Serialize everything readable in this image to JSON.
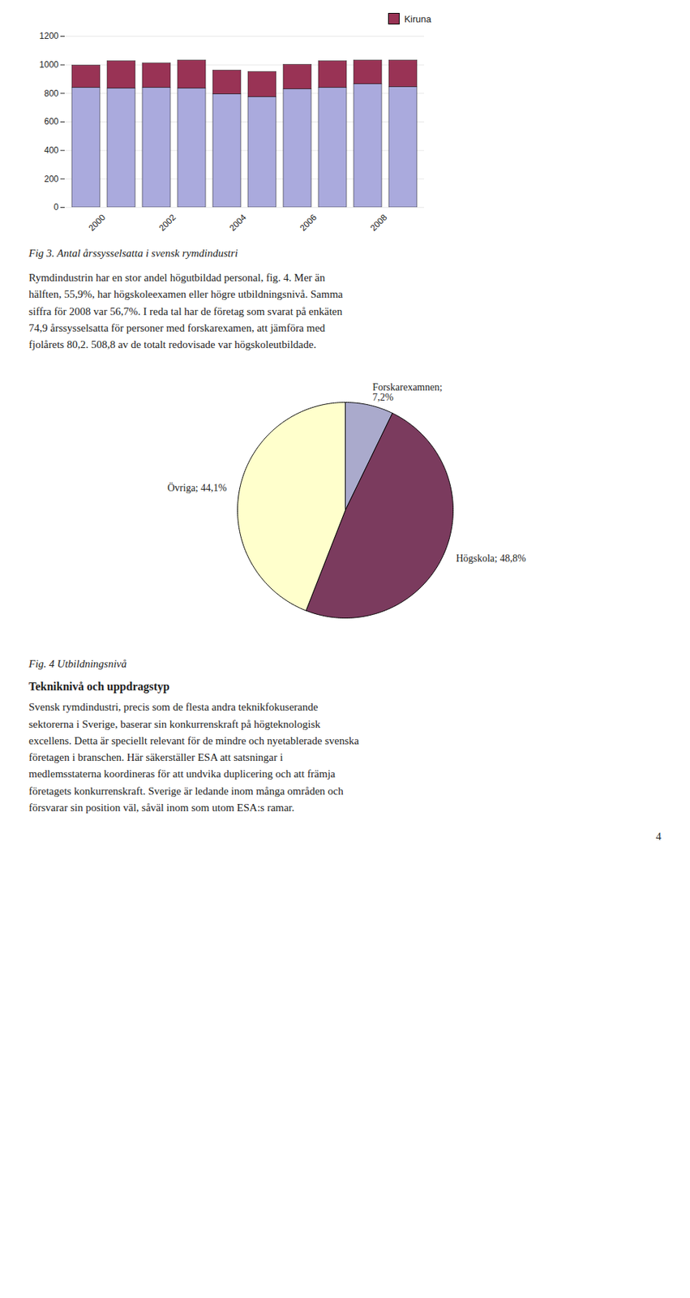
{
  "chart_data": [
    {
      "type": "bar",
      "title": "Fig 3. Antal årssysselsatta i svensk rymdindustri",
      "categories": [
        "2000",
        null,
        "2002",
        null,
        "2004",
        null,
        "2006",
        null,
        "2008",
        null
      ],
      "series": [
        {
          "color": "#aaaadd",
          "values": [
            840,
            835,
            840,
            835,
            795,
            775,
            830,
            840,
            865,
            845
          ]
        },
        {
          "name": "Kiruna",
          "color": "#993355",
          "values": [
            155,
            190,
            170,
            195,
            165,
            175,
            170,
            185,
            165,
            185
          ]
        }
      ],
      "stacked": true,
      "ylim": [
        0,
        1200
      ],
      "yticks": [
        0,
        200,
        400,
        600,
        800,
        1000,
        1200
      ],
      "grid": true,
      "legend": "upper right",
      "annotations": [
        "Rymdindustrin har en stor andel högutbildad personal, fig. 4. Mer än\nhälften, 55,9%, har högskoleexamen eller högre utbildningsnivå. Samma\nsiffra för 2008 var 56,7%. I reda tal har de företag som svarat på enkäten\n74,9 årssysselsatta för personer med forskarexamen, att jämföra med\nfjolårets 80,2. 508,8 av de totalt redovisade var högskoleutbildade."
      ]
    },
    {
      "type": "pie",
      "title": "Fig. 4 Utbildningsnivå",
      "values": [
        7.2,
        48.8,
        44.1
      ],
      "value_labels": [
        "Forskarexamnen;\n7,2%",
        "Högskola; 48,8%",
        "Övriga; 44,1%"
      ],
      "colors": [
        "#aaaacc",
        "#7b3b5e",
        "#ffffcc"
      ],
      "data_labels": true,
      "annotations": [
        "Tekniknivå och uppdragstyp",
        "Svensk rymdindustri, precis som de flesta andra teknikfokuserande\nsektorerna i Sverige, baserar sin konkurrenskraft på högteknologisk\nexcellens. Detta är speciellt relevant för de mindre och nyetablerade svenska\nföretagen i branschen. Här säkerställer ESA att satsningar i\nmedlemsstaterna koordineras för att undvika duplicering och att främja\nföretagets konkurrenskraft. Sverige är ledande inom många områden och\nförsvarar sin position väl, såväl inom som utom ESA:s ramar.",
        "4"
      ]
    }
  ]
}
